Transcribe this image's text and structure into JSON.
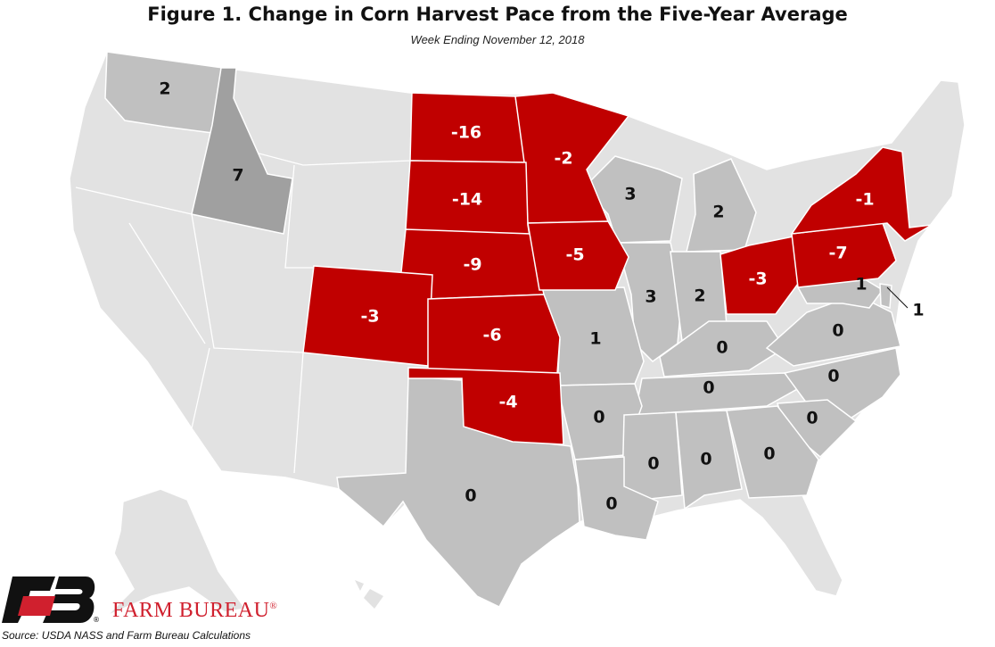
{
  "title": "Figure 1. Change in Corn Harvest Pace from the Five-Year Average",
  "subtitle": "Week Ending November 12, 2018",
  "source": "Source: USDA NASS and Farm Bureau Calculations",
  "brand": {
    "name": "FARM BUREAU",
    "mark": "®",
    "logo_colors": [
      "#111111",
      "#d0202e"
    ]
  },
  "colors": {
    "negative": "#c00000",
    "reported_zero_or_positive": "#c0c0c0",
    "idaho": "#a0a0a0",
    "not_reported": "#e2e2e2",
    "border": "#ffffff"
  },
  "states": [
    {
      "state": "WA",
      "value": "2"
    },
    {
      "state": "ID",
      "value": "7"
    },
    {
      "state": "ND",
      "value": "-16"
    },
    {
      "state": "MN",
      "value": "-2"
    },
    {
      "state": "SD",
      "value": "-14"
    },
    {
      "state": "WI",
      "value": "3"
    },
    {
      "state": "MI",
      "value": "2"
    },
    {
      "state": "NY",
      "value": "-1"
    },
    {
      "state": "NE",
      "value": "-9"
    },
    {
      "state": "IA",
      "value": "-5"
    },
    {
      "state": "OH",
      "value": "-3"
    },
    {
      "state": "PA",
      "value": "-7"
    },
    {
      "state": "CO",
      "value": "-3"
    },
    {
      "state": "IL",
      "value": "3"
    },
    {
      "state": "IN",
      "value": "2"
    },
    {
      "state": "MD",
      "value": "1"
    },
    {
      "state": "DE",
      "value": "1"
    },
    {
      "state": "KS",
      "value": "-6"
    },
    {
      "state": "MO",
      "value": "1"
    },
    {
      "state": "KY",
      "value": "0"
    },
    {
      "state": "VA",
      "value": "0"
    },
    {
      "state": "TN",
      "value": "0"
    },
    {
      "state": "NC",
      "value": "0"
    },
    {
      "state": "OK",
      "value": "-4"
    },
    {
      "state": "AR",
      "value": "0"
    },
    {
      "state": "SC",
      "value": "0"
    },
    {
      "state": "MS",
      "value": "0"
    },
    {
      "state": "AL",
      "value": "0"
    },
    {
      "state": "GA",
      "value": "0"
    },
    {
      "state": "TX",
      "value": "0"
    },
    {
      "state": "LA",
      "value": "0"
    }
  ]
}
